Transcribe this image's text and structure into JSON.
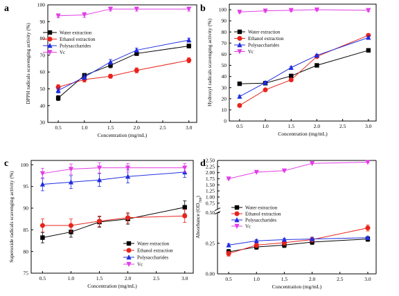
{
  "chart_data": [
    {
      "panel": "a",
      "type": "line",
      "xlabel": "Concentration (mg/mL)",
      "ylabel": "DPPH radicals scavenging activity (%)",
      "x": [
        0.5,
        1.0,
        1.5,
        2.0,
        3.0
      ],
      "xlim": [
        0.3,
        3.15
      ],
      "xticks": [
        "0.5",
        "1.0",
        "1.5",
        "2.0",
        "2.5",
        "3.0"
      ],
      "ylim": [
        30,
        100
      ],
      "yticks": [
        "30",
        "40",
        "50",
        "60",
        "70",
        "80",
        "90",
        "100"
      ],
      "legend_position": "left",
      "series": [
        {
          "name": "Water extraction",
          "color": "#000000",
          "marker": "square",
          "values": [
            44.5,
            58,
            64,
            71,
            75.5
          ],
          "errors": [
            1.5,
            1.2,
            1.5,
            1.2,
            1.2
          ]
        },
        {
          "name": "Ethanol extraction",
          "color": "#e8231c",
          "marker": "circle",
          "values": [
            51,
            55.5,
            57.5,
            61,
            67
          ],
          "errors": [
            1.5,
            1.5,
            1.2,
            1.5,
            1.5
          ]
        },
        {
          "name": "Polysaccharides",
          "color": "#1f2de0",
          "marker": "triangle-up",
          "values": [
            49,
            57,
            66,
            73,
            79
          ],
          "errors": [
            1.5,
            1.5,
            1.5,
            1.2,
            1.2
          ]
        },
        {
          "name": "Vc",
          "color": "#e23de6",
          "marker": "triangle-down",
          "values": [
            93.5,
            94,
            97.5,
            97.5,
            97.5
          ],
          "errors": [
            1.2,
            1.5,
            1.2,
            1.2,
            1.2
          ]
        }
      ]
    },
    {
      "panel": "b",
      "type": "line",
      "xlabel": "Concentration (mg/mL)",
      "ylabel": "Hydroxyl radicals scavenging activity (%)",
      "x": [
        0.5,
        1.0,
        1.5,
        2.0,
        3.0
      ],
      "xlim": [
        0.3,
        3.15
      ],
      "xticks": [
        "0.5",
        "1.0",
        "1.5",
        "2.0",
        "2.5",
        "3.0"
      ],
      "ylim": [
        0,
        105
      ],
      "yticks": [
        "0",
        "10",
        "20",
        "30",
        "40",
        "50",
        "60",
        "70",
        "80",
        "90",
        "100"
      ],
      "legend_position": "left",
      "series": [
        {
          "name": "Water extraction",
          "color": "#000000",
          "marker": "square",
          "values": [
            33.5,
            34,
            40.5,
            50,
            63.5
          ],
          "errors": [
            1,
            1,
            1,
            1,
            1.5
          ]
        },
        {
          "name": "Ethanol extraction",
          "color": "#e8231c",
          "marker": "circle",
          "values": [
            14,
            28,
            37,
            58,
            77
          ],
          "errors": [
            1,
            1,
            1.5,
            1,
            1.5
          ]
        },
        {
          "name": "Polysaccharides",
          "color": "#1f2de0",
          "marker": "triangle-up",
          "values": [
            22,
            34.5,
            48,
            59,
            75
          ],
          "errors": [
            1,
            1,
            1,
            1,
            1.5
          ]
        },
        {
          "name": "Vc",
          "color": "#e23de6",
          "marker": "triangle-down",
          "values": [
            98,
            99,
            99.5,
            100,
            99.5
          ],
          "errors": [
            1,
            1,
            1,
            1,
            1
          ]
        }
      ]
    },
    {
      "panel": "c",
      "type": "line",
      "xlabel": "Concentration (mg/mL)",
      "ylabel": "Superoxide radicals scavenging activity (%)",
      "x": [
        0.5,
        1.0,
        1.5,
        2.0,
        3.0
      ],
      "xlim": [
        0.3,
        3.15
      ],
      "xticks": [
        "0.5",
        "1.0",
        "1.5",
        "2.0",
        "2.5",
        "3.0"
      ],
      "ylim": [
        75,
        101
      ],
      "yticks": [
        "75",
        "80",
        "85",
        "90",
        "95",
        "100"
      ],
      "legend_position": "bottom-right",
      "series": [
        {
          "name": "Water extraction",
          "color": "#000000",
          "marker": "square",
          "values": [
            83.2,
            84.5,
            86.8,
            87.5,
            90.2
          ],
          "errors": [
            1.2,
            1.2,
            1.2,
            1.2,
            1.5
          ]
        },
        {
          "name": "Ethanol extraction",
          "color": "#e8231c",
          "marker": "circle",
          "values": [
            86,
            86,
            87,
            87.8,
            88.2
          ],
          "errors": [
            1.5,
            1.5,
            1.2,
            1.2,
            1.5
          ]
        },
        {
          "name": "Polysaccharides",
          "color": "#1f2de0",
          "marker": "triangle-up",
          "values": [
            95.5,
            96,
            96.5,
            97.3,
            98.3
          ],
          "errors": [
            1.5,
            1.5,
            1.5,
            1.5,
            1.2
          ]
        },
        {
          "name": "Vc",
          "color": "#e23de6",
          "marker": "triangle-down",
          "values": [
            98,
            99,
            99.3,
            99.3,
            99.3
          ],
          "errors": [
            1.2,
            1.2,
            1.2,
            1,
            1
          ]
        }
      ]
    },
    {
      "panel": "d",
      "type": "line",
      "xlabel": "Concentration (mg/mL)",
      "ylabel": "Absorbance (OD",
      "ylabel_sub": "700",
      "ylabel_end": ")",
      "axis_break": true,
      "x": [
        0.5,
        1.0,
        1.5,
        2.0,
        3.0
      ],
      "xlim": [
        0.3,
        3.15
      ],
      "xticks": [
        "0.5",
        "1.0",
        "1.5",
        "2.0",
        "2.5",
        "3.0"
      ],
      "ylim_lower": [
        0,
        0.5
      ],
      "ylim_upper": [
        0.5,
        2.5
      ],
      "yticks_lower": [
        "0.00",
        "0.25",
        "0.50"
      ],
      "yticks_upper": [
        "0.50",
        "0.75",
        "1.00",
        "1.25",
        "1.50",
        "1.75",
        "2.00",
        "2.25",
        "2.50"
      ],
      "legend_position": "middle-left",
      "series": [
        {
          "name": "Water extraction",
          "color": "#000000",
          "marker": "square",
          "values": [
            0.18,
            0.22,
            0.235,
            0.26,
            0.285
          ],
          "errors": [
            0.02,
            0.02,
            0.02,
            0.02,
            0.02
          ]
        },
        {
          "name": "Ethanol extraction",
          "color": "#e8231c",
          "marker": "circle",
          "values": [
            0.165,
            0.235,
            0.255,
            0.28,
            0.375
          ],
          "errors": [
            0.02,
            0.02,
            0.02,
            0.02,
            0.025
          ]
        },
        {
          "name": "Polysaccharides",
          "color": "#1f2de0",
          "marker": "triangle-up",
          "values": [
            0.235,
            0.27,
            0.28,
            0.285,
            0.295
          ],
          "errors": [
            0.01,
            0.01,
            0.01,
            0.01,
            0.01
          ]
        },
        {
          "name": "Vc",
          "color": "#e23de6",
          "marker": "triangle-down",
          "values": [
            1.75,
            2.02,
            2.08,
            2.38,
            2.43
          ],
          "errors": [
            0.02,
            0.02,
            0.02,
            0.02,
            0.02
          ]
        }
      ]
    }
  ]
}
